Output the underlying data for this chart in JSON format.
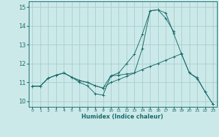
{
  "xlabel": "Humidex (Indice chaleur)",
  "bg_color": "#cce9e9",
  "grid_color": "#a8cccc",
  "line_color": "#1a6b6b",
  "xlim": [
    -0.5,
    23.5
  ],
  "ylim": [
    9.7,
    15.3
  ],
  "xticks": [
    0,
    1,
    2,
    3,
    4,
    5,
    6,
    7,
    8,
    9,
    10,
    11,
    12,
    13,
    14,
    15,
    16,
    17,
    18,
    19,
    20,
    21,
    22,
    23
  ],
  "yticks": [
    10,
    11,
    12,
    13,
    14,
    15
  ],
  "line1_y": [
    10.8,
    10.8,
    11.22,
    11.38,
    11.5,
    11.28,
    11.0,
    10.82,
    10.4,
    10.32,
    11.35,
    11.38,
    11.45,
    11.5,
    12.8,
    14.8,
    14.85,
    14.4,
    13.7,
    null,
    null,
    null,
    null,
    null
  ],
  "line2_y": [
    10.8,
    10.8,
    11.22,
    11.38,
    11.5,
    11.28,
    11.1,
    11.0,
    10.82,
    10.7,
    11.35,
    11.5,
    12.0,
    12.5,
    13.55,
    14.8,
    14.85,
    14.68,
    13.6,
    12.5,
    11.5,
    11.2,
    10.5,
    9.85
  ],
  "line3_y": [
    10.8,
    10.8,
    11.22,
    11.38,
    11.5,
    11.28,
    11.1,
    11.0,
    10.82,
    10.7,
    11.0,
    11.15,
    11.32,
    11.5,
    11.68,
    11.85,
    12.0,
    12.18,
    12.35,
    12.52,
    11.5,
    11.25,
    10.5,
    9.85
  ]
}
